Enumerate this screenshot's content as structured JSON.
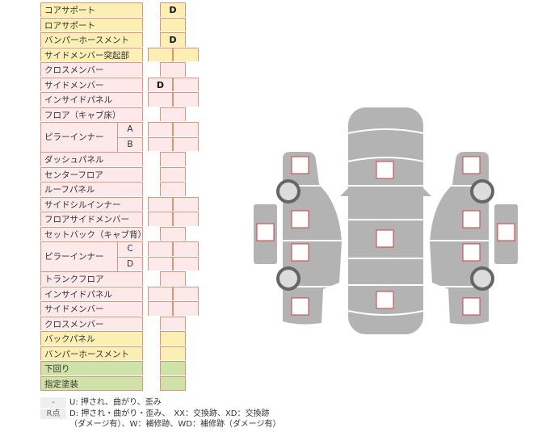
{
  "rows": [
    {
      "label": "コアサポート",
      "color": "y",
      "cells": "single",
      "values": [
        "D"
      ]
    },
    {
      "label": "ロアサポート",
      "color": "y",
      "cells": "single",
      "values": [
        ""
      ]
    },
    {
      "label": "バンパーホースメント",
      "color": "y",
      "cells": "single",
      "values": [
        "D"
      ]
    },
    {
      "label": "サイドメンバー突起部",
      "color": "y",
      "cells": "double",
      "values": [
        "",
        ""
      ]
    },
    {
      "label": "クロスメンバー",
      "color": "p",
      "cells": "single",
      "values": [
        ""
      ]
    },
    {
      "label": "サイドメンバー",
      "color": "p",
      "cells": "double",
      "values": [
        "D",
        ""
      ]
    },
    {
      "label": "インサイドパネル",
      "color": "p",
      "cells": "double",
      "values": [
        "",
        ""
      ]
    },
    {
      "label": "フロア（キャブ床）",
      "color": "p",
      "cells": "single",
      "values": [
        ""
      ]
    },
    {
      "label": "ピラーインナー",
      "sub": "A",
      "color": "p",
      "cells": "double",
      "values": [
        "",
        ""
      ]
    },
    {
      "label": "",
      "sub": "B",
      "color": "p",
      "cells": "double",
      "values": [
        "",
        ""
      ]
    },
    {
      "label": "ダッシュパネル",
      "color": "p",
      "cells": "single",
      "values": [
        ""
      ]
    },
    {
      "label": "センターフロア",
      "color": "p",
      "cells": "single",
      "values": [
        ""
      ]
    },
    {
      "label": "ルーフパネル",
      "color": "p",
      "cells": "single",
      "values": [
        ""
      ]
    },
    {
      "label": "サイドシルインナー",
      "color": "p",
      "cells": "double",
      "values": [
        "",
        ""
      ]
    },
    {
      "label": "フロアサイドメンバー",
      "color": "p",
      "cells": "double",
      "values": [
        "",
        ""
      ]
    },
    {
      "label": "セットバック（キャブ背）",
      "color": "p",
      "cells": "single",
      "values": [
        ""
      ]
    },
    {
      "label": "ピラーインナー",
      "sub": "C",
      "color": "p",
      "cells": "double",
      "values": [
        "",
        ""
      ]
    },
    {
      "label": "",
      "sub": "D",
      "color": "p",
      "cells": "double",
      "values": [
        "",
        ""
      ]
    },
    {
      "label": "トランクフロア",
      "color": "p",
      "cells": "single",
      "values": [
        ""
      ]
    },
    {
      "label": "インサイドパネル",
      "color": "p",
      "cells": "double",
      "values": [
        "",
        ""
      ]
    },
    {
      "label": "サイドメンバー",
      "color": "p",
      "cells": "double",
      "values": [
        "",
        ""
      ]
    },
    {
      "label": "クロスメンバー",
      "color": "p",
      "cells": "single",
      "values": [
        ""
      ]
    },
    {
      "label": "バックパネル",
      "color": "y",
      "cells": "single",
      "values": [
        ""
      ]
    },
    {
      "label": "バンパーホースメント",
      "color": "y",
      "cells": "single",
      "values": [
        ""
      ]
    },
    {
      "label": "下回り",
      "color": "g",
      "cells": "single",
      "values": [
        ""
      ]
    },
    {
      "label": "指定塗装",
      "color": "g",
      "cells": "single",
      "values": [
        ""
      ]
    }
  ],
  "legend": [
    {
      "key": "-",
      "text": "U: 押され、曲がり、歪み"
    },
    {
      "key": "R点",
      "text": "D: 押され・曲がり・歪み、　XX：交換跡、XD：交換跡"
    },
    {
      "key": "",
      "text": "（ダメージ有）、W：補修跡、WD：補修跡（ダメージ有）"
    }
  ],
  "colors": {
    "yellow": "#fcefb4",
    "pink": "#fde8ea",
    "green": "#cfe3a8",
    "border": "#d9957a",
    "car": "#b3b3b3",
    "marker": "#d23c3c"
  }
}
